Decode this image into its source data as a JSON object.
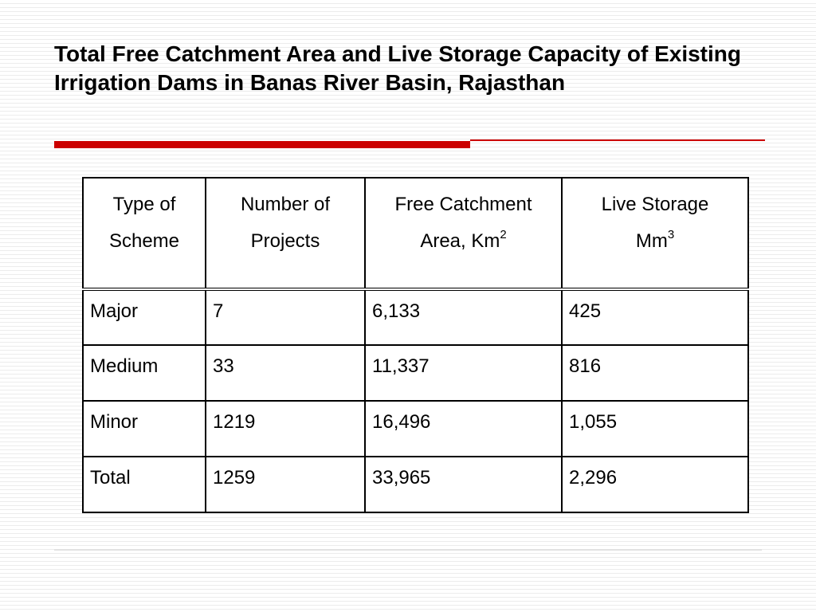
{
  "slide": {
    "title": "Total Free Catchment Area and Live Storage Capacity of Existing Irrigation Dams in Banas River Basin, Rajasthan"
  },
  "colors": {
    "accent_red": "#cc0000",
    "table_border": "#000000"
  },
  "table": {
    "headers": [
      {
        "line1": "Type of",
        "line2": "Scheme",
        "sup": ""
      },
      {
        "line1": "Number of",
        "line2": "Projects",
        "sup": ""
      },
      {
        "line1": "Free Catchment",
        "line2": "Area, Km",
        "sup": "2"
      },
      {
        "line1": "Live Storage",
        "line2": "Mm",
        "sup": "3"
      }
    ],
    "rows": [
      [
        "Major",
        "7",
        "6,133",
        "425"
      ],
      [
        "Medium",
        "33",
        "11,337",
        "816"
      ],
      [
        "Minor",
        "1219",
        "16,496",
        "1,055"
      ],
      [
        "Total",
        "1259",
        "33,965",
        "2,296"
      ]
    ]
  }
}
